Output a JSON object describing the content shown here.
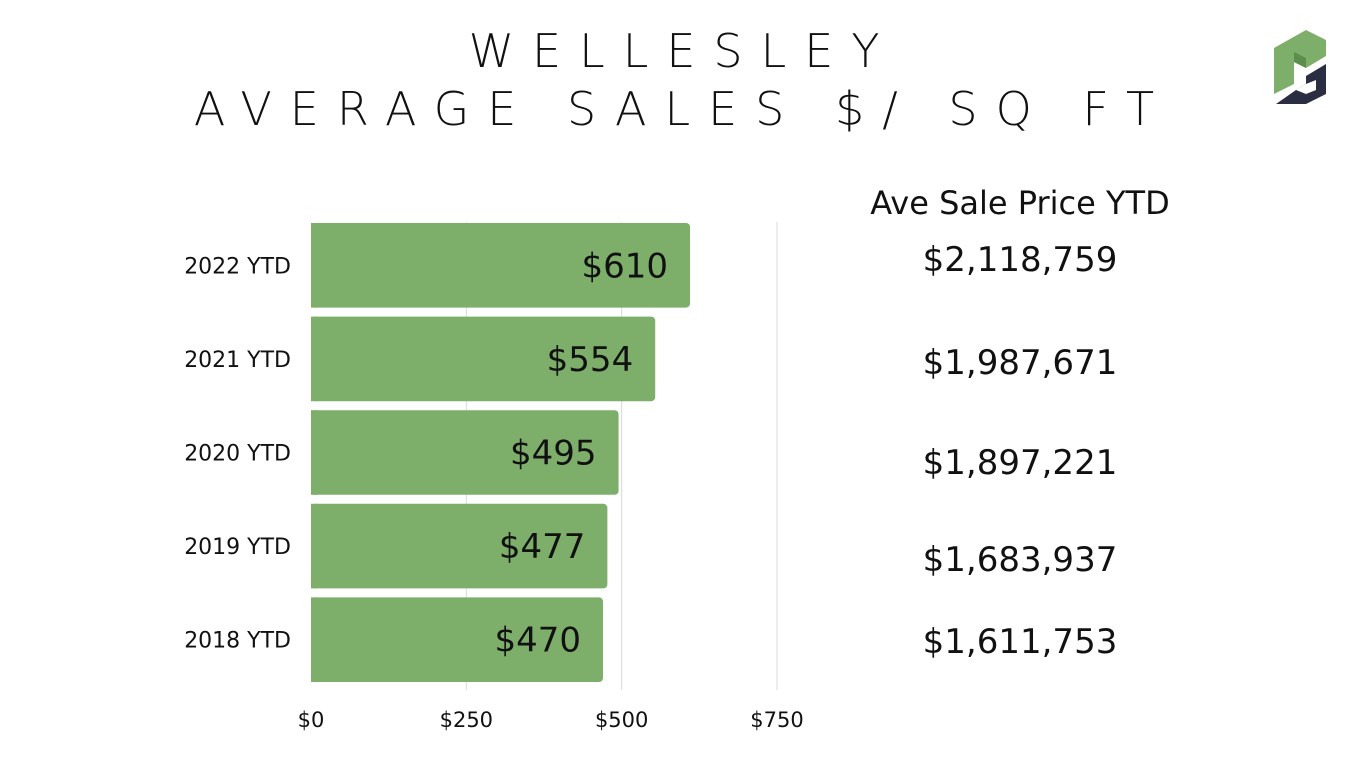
{
  "title_line1": "WELLESLEY",
  "title_line2": "AVERAGE SALES $/ SQ FT",
  "logo_icon": "pd-logo-icon",
  "colors": {
    "bar": "#7daf6b",
    "logo_green": "#7daf6b",
    "logo_dark": "#2b2d42",
    "gridline": "#d9d9d9"
  },
  "side_panel": {
    "title": "Ave Sale Price YTD",
    "values": [
      "$2,118,759",
      "$1,987,671",
      "$1,897,221",
      "$1,683,937",
      "$1,611,753"
    ]
  },
  "chart_data": {
    "type": "bar",
    "orientation": "horizontal",
    "categories": [
      "2022 YTD",
      "2021 YTD",
      "2020 YTD",
      "2019 YTD",
      "2018 YTD"
    ],
    "values": [
      610,
      554,
      495,
      477,
      470
    ],
    "data_labels": [
      "$610",
      "$554",
      "$495",
      "$477",
      "$470"
    ],
    "xlim": [
      0,
      750
    ],
    "x_ticks": [
      0,
      250,
      500,
      750
    ],
    "x_tick_labels": [
      "$0",
      "$250",
      "$500",
      "$750"
    ],
    "grid": true,
    "legend": "none"
  }
}
